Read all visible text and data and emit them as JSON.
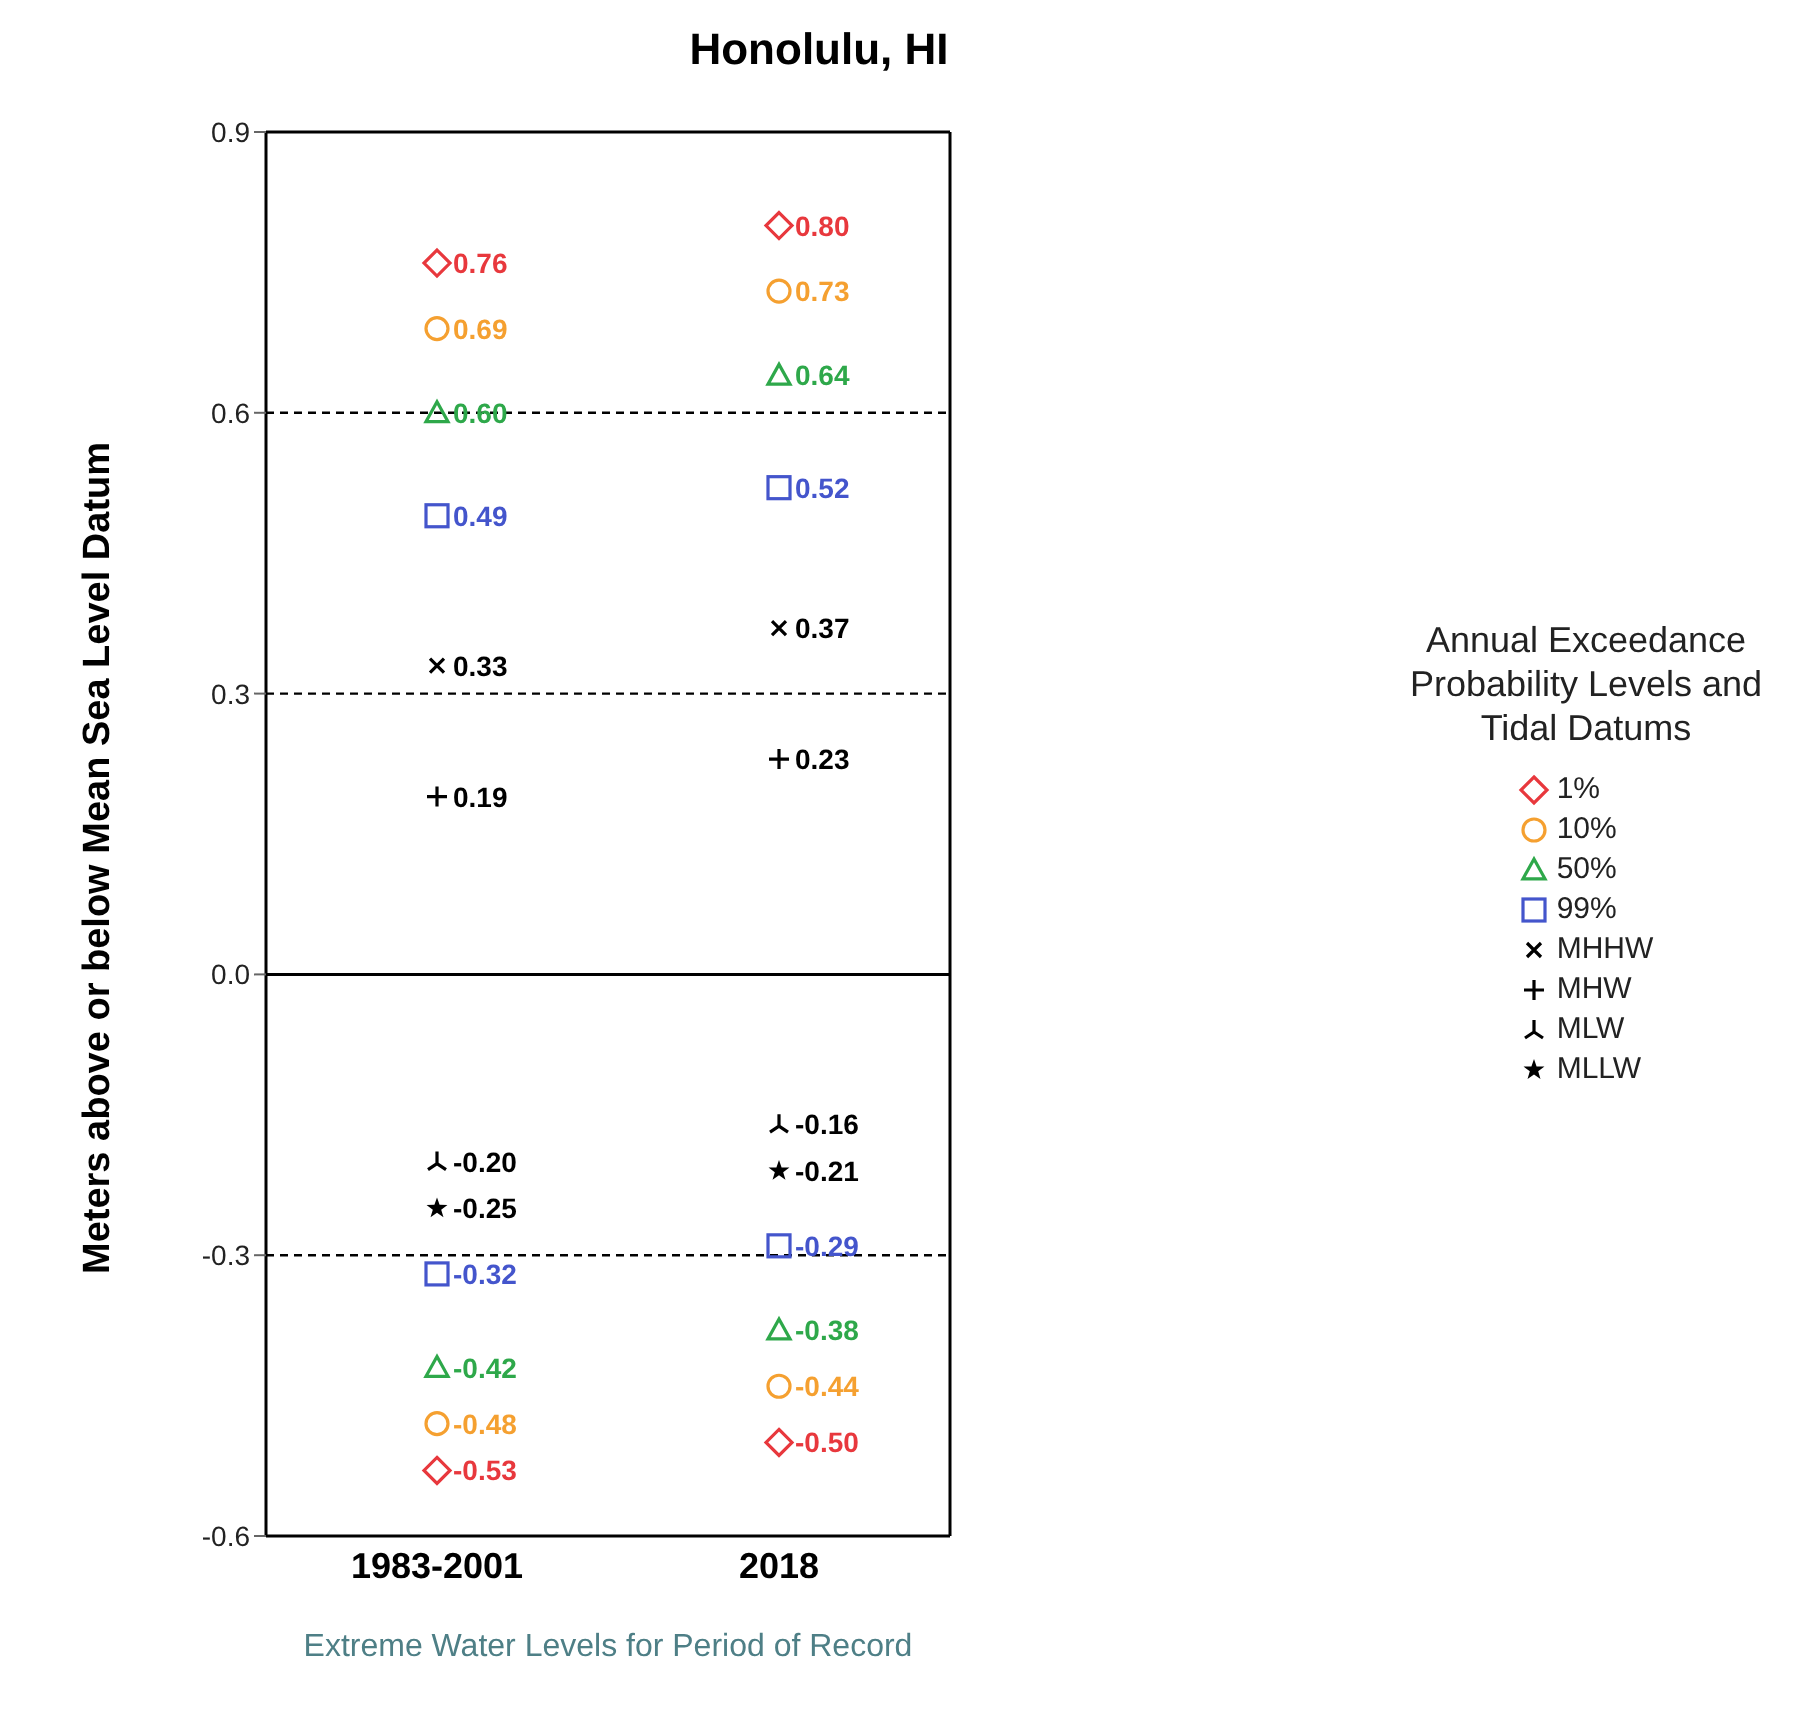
{
  "chart_data": {
    "type": "scatter",
    "title": "Honolulu, HI",
    "xlabel": "Extreme Water Levels for Period of Record",
    "ylabel": "Meters above or below Mean Sea Level Datum",
    "legend_title": "Annual Exceedance Probability Levels and Tidal Datums",
    "legend": "right",
    "categories": [
      "1983-2001",
      "2018"
    ],
    "ylim": [
      -0.6,
      0.9
    ],
    "yticks": [
      0.9,
      0.6,
      0.3,
      {
        "value": 0,
        "label": "0.0"
      },
      -0.3,
      -0.6
    ],
    "series": [
      {
        "name": "1%",
        "color": "#e8383d",
        "marker": "diamond",
        "values": [
          0.76,
          0.8
        ],
        "value_labels": [
          "0.76",
          "0.80"
        ]
      },
      {
        "name": "10%",
        "color": "#f5a030",
        "marker": "circle",
        "values": [
          0.69,
          0.73
        ],
        "value_labels": [
          "0.69",
          "0.73"
        ]
      },
      {
        "name": "50%",
        "color": "#2ea84a",
        "marker": "triangle",
        "values": [
          0.6,
          0.64
        ],
        "value_labels": [
          "0.60",
          "0.64"
        ]
      },
      {
        "name": "99%",
        "color": "#4455cc",
        "marker": "square",
        "values": [
          0.49,
          0.52
        ],
        "value_labels": [
          "0.49",
          "0.52"
        ]
      },
      {
        "name": "MHHW",
        "color": "#000000",
        "marker": "cross",
        "values": [
          0.33,
          0.37
        ],
        "value_labels": [
          "0.33",
          "0.37"
        ]
      },
      {
        "name": "MHW",
        "color": "#000000",
        "marker": "plus",
        "values": [
          0.19,
          0.23
        ],
        "value_labels": [
          "0.19",
          "0.23"
        ]
      },
      {
        "name": "MLW",
        "color": "#000000",
        "values": [
          -0.2,
          -0.16
        ],
        "value_labels": [
          "-0.20",
          "-0.16"
        ]
      },
      {
        "name": "MLLW",
        "color": "#000000",
        "marker": "star",
        "values": [
          -0.25,
          -0.21
        ],
        "value_labels": [
          "-0.25",
          "-0.21"
        ]
      },
      {
        "color": "#4455cc",
        "marker": "square",
        "values": [
          -0.32,
          -0.29
        ],
        "value_labels": [
          "-0.32",
          "-0.29"
        ]
      },
      {
        "color": "#2ea84a",
        "marker": "triangle",
        "values": [
          -0.42,
          -0.38
        ],
        "value_labels": [
          "-0.42",
          "-0.38"
        ]
      },
      {
        "color": "#f5a030",
        "marker": "circle",
        "values": [
          -0.48,
          -0.44
        ],
        "value_labels": [
          "-0.48",
          "-0.44"
        ]
      },
      {
        "color": "#e8383d",
        "marker": "diamond",
        "values": [
          -0.53,
          -0.5
        ],
        "value_labels": [
          "-0.53",
          "-0.50"
        ]
      }
    ],
    "ref_lines": [
      {
        "axis": "y",
        "value": 0.6,
        "line_style": "dashed"
      },
      {
        "axis": "y",
        "value": 0.3,
        "line_style": "dashed"
      },
      {
        "axis": "y",
        "value": 0,
        "line_style": "solid"
      },
      {
        "axis": "y",
        "value": -0.3,
        "line_style": "dashed"
      }
    ]
  }
}
